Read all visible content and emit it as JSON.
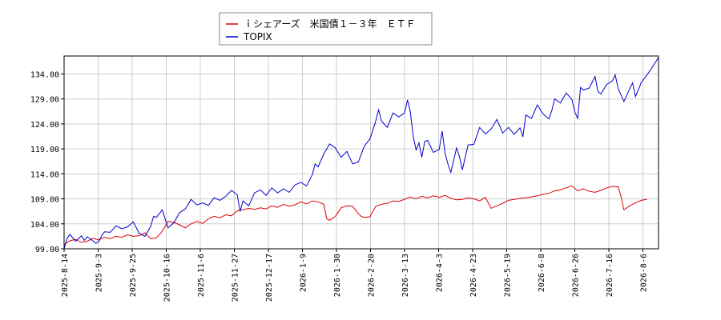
{
  "chart_data": {
    "type": "line",
    "grid": true,
    "legend_placement": "top-center",
    "ylim": [
      99.0,
      137.6
    ],
    "y_ticks": [
      "99.00",
      "104.00",
      "109.00",
      "114.00",
      "119.00",
      "124.00",
      "129.00",
      "134.00"
    ],
    "x_ticks": [
      "2025-8-14",
      "2025-9-3",
      "2025-9-25",
      "2025-10-16",
      "2025-11-6",
      "2025-11-27",
      "2025-12-17",
      "2026-1-9",
      "2026-1-30",
      "2026-2-20",
      "2026-3-13",
      "2026-4-3",
      "2026-4-23",
      "2026-5-19",
      "2026-6-8",
      "2026-6-26",
      "2026-7-16",
      "2026-8-6"
    ],
    "series": [
      {
        "name": "ｉシェアーズ　米国債１－３年　ＥＴＦ",
        "color": "#dd0000",
        "points": [
          [
            0,
            99.8
          ],
          [
            2,
            100.6
          ],
          [
            4,
            100.9
          ],
          [
            6,
            100.3
          ],
          [
            8,
            100.5
          ],
          [
            10,
            101.1
          ],
          [
            12,
            100.8
          ],
          [
            14,
            101.3
          ],
          [
            16,
            101.0
          ],
          [
            18,
            101.5
          ],
          [
            20,
            101.3
          ],
          [
            22,
            101.8
          ],
          [
            24,
            101.5
          ],
          [
            26,
            101.6
          ],
          [
            28,
            102.2
          ],
          [
            30,
            101.0
          ],
          [
            32,
            101.2
          ],
          [
            34,
            102.5
          ],
          [
            36,
            104.5
          ],
          [
            38,
            104.3
          ],
          [
            40,
            103.8
          ],
          [
            42,
            103.2
          ],
          [
            44,
            104.0
          ],
          [
            46,
            104.5
          ],
          [
            48,
            104.1
          ],
          [
            50,
            105.0
          ],
          [
            52,
            105.5
          ],
          [
            54,
            105.2
          ],
          [
            56,
            105.8
          ],
          [
            58,
            105.6
          ],
          [
            60,
            106.6
          ],
          [
            62,
            106.8
          ],
          [
            64,
            107.1
          ],
          [
            66,
            106.9
          ],
          [
            68,
            107.2
          ],
          [
            70,
            107.0
          ],
          [
            72,
            107.6
          ],
          [
            74,
            107.3
          ],
          [
            76,
            107.9
          ],
          [
            78,
            107.5
          ],
          [
            80,
            107.8
          ],
          [
            82,
            108.4
          ],
          [
            84,
            108.0
          ],
          [
            86,
            108.6
          ],
          [
            88,
            108.4
          ],
          [
            90,
            107.9
          ],
          [
            91,
            105.0
          ],
          [
            92,
            104.7
          ],
          [
            94,
            105.5
          ],
          [
            96,
            107.2
          ],
          [
            98,
            107.6
          ],
          [
            100,
            107.5
          ],
          [
            102,
            106.0
          ],
          [
            103,
            105.5
          ],
          [
            104,
            105.3
          ],
          [
            106,
            105.4
          ],
          [
            108,
            107.5
          ],
          [
            110,
            107.9
          ],
          [
            112,
            108.1
          ],
          [
            114,
            108.6
          ],
          [
            116,
            108.5
          ],
          [
            118,
            108.9
          ],
          [
            120,
            109.4
          ],
          [
            122,
            109.0
          ],
          [
            124,
            109.5
          ],
          [
            126,
            109.2
          ],
          [
            128,
            109.6
          ],
          [
            130,
            109.3
          ],
          [
            132,
            109.7
          ],
          [
            134,
            109.1
          ],
          [
            136,
            108.8
          ],
          [
            138,
            108.9
          ],
          [
            140,
            109.2
          ],
          [
            142,
            109.0
          ],
          [
            144,
            108.6
          ],
          [
            146,
            109.3
          ],
          [
            148,
            107.1
          ],
          [
            150,
            107.6
          ],
          [
            152,
            108.1
          ],
          [
            154,
            108.7
          ],
          [
            156,
            108.9
          ],
          [
            158,
            109.1
          ],
          [
            160,
            109.2
          ],
          [
            162,
            109.4
          ],
          [
            164,
            109.6
          ],
          [
            166,
            109.9
          ],
          [
            168,
            110.1
          ],
          [
            170,
            110.6
          ],
          [
            172,
            110.8
          ],
          [
            174,
            111.2
          ],
          [
            176,
            111.6
          ],
          [
            178,
            110.6
          ],
          [
            180,
            111.0
          ],
          [
            182,
            110.5
          ],
          [
            184,
            110.3
          ],
          [
            186,
            110.7
          ],
          [
            188,
            111.2
          ],
          [
            190,
            111.5
          ],
          [
            192,
            111.4
          ],
          [
            193,
            109.5
          ],
          [
            194,
            106.8
          ],
          [
            196,
            107.6
          ],
          [
            198,
            108.2
          ],
          [
            200,
            108.7
          ],
          [
            202,
            108.9
          ]
        ]
      },
      {
        "name": "TOPIX",
        "color": "#0000cc",
        "points": [
          [
            0,
            99.0
          ],
          [
            1,
            101.0
          ],
          [
            2,
            101.9
          ],
          [
            4,
            100.5
          ],
          [
            6,
            101.6
          ],
          [
            7,
            100.7
          ],
          [
            8,
            101.4
          ],
          [
            10,
            100.6
          ],
          [
            11,
            100.1
          ],
          [
            12,
            100.4
          ],
          [
            13,
            101.6
          ],
          [
            14,
            102.4
          ],
          [
            16,
            102.3
          ],
          [
            18,
            103.6
          ],
          [
            20,
            103.0
          ],
          [
            22,
            103.4
          ],
          [
            24,
            104.4
          ],
          [
            26,
            102.1
          ],
          [
            28,
            101.5
          ],
          [
            30,
            103.5
          ],
          [
            31,
            105.5
          ],
          [
            32,
            105.3
          ],
          [
            34,
            106.8
          ],
          [
            36,
            103.2
          ],
          [
            38,
            104.2
          ],
          [
            40,
            106.2
          ],
          [
            42,
            107.0
          ],
          [
            44,
            108.9
          ],
          [
            46,
            107.8
          ],
          [
            48,
            108.2
          ],
          [
            50,
            107.7
          ],
          [
            52,
            109.2
          ],
          [
            54,
            108.7
          ],
          [
            56,
            109.5
          ],
          [
            58,
            110.7
          ],
          [
            60,
            109.8
          ],
          [
            61,
            106.5
          ],
          [
            62,
            108.6
          ],
          [
            64,
            107.6
          ],
          [
            66,
            110.2
          ],
          [
            68,
            110.8
          ],
          [
            70,
            109.7
          ],
          [
            72,
            111.2
          ],
          [
            74,
            110.2
          ],
          [
            76,
            111.0
          ],
          [
            78,
            110.3
          ],
          [
            80,
            111.8
          ],
          [
            82,
            112.3
          ],
          [
            84,
            111.6
          ],
          [
            86,
            113.8
          ],
          [
            87,
            116.0
          ],
          [
            88,
            115.4
          ],
          [
            90,
            118.0
          ],
          [
            92,
            120.0
          ],
          [
            94,
            119.2
          ],
          [
            96,
            117.3
          ],
          [
            98,
            118.5
          ],
          [
            100,
            116.0
          ],
          [
            102,
            116.4
          ],
          [
            104,
            119.5
          ],
          [
            106,
            121.0
          ],
          [
            108,
            124.6
          ],
          [
            109,
            126.8
          ],
          [
            110,
            124.6
          ],
          [
            112,
            123.3
          ],
          [
            114,
            126.2
          ],
          [
            116,
            125.4
          ],
          [
            118,
            126.2
          ],
          [
            119,
            128.8
          ],
          [
            120,
            126.4
          ],
          [
            121,
            121.5
          ],
          [
            122,
            118.8
          ],
          [
            123,
            120.2
          ],
          [
            124,
            117.3
          ],
          [
            125,
            120.5
          ],
          [
            126,
            120.7
          ],
          [
            128,
            118.3
          ],
          [
            130,
            118.9
          ],
          [
            131,
            122.6
          ],
          [
            132,
            118.2
          ],
          [
            133,
            116.0
          ],
          [
            134,
            114.3
          ],
          [
            136,
            119.2
          ],
          [
            137,
            117.5
          ],
          [
            138,
            114.8
          ],
          [
            140,
            119.8
          ],
          [
            142,
            119.9
          ],
          [
            144,
            123.3
          ],
          [
            146,
            122.0
          ],
          [
            148,
            123.0
          ],
          [
            150,
            124.9
          ],
          [
            152,
            122.2
          ],
          [
            154,
            123.3
          ],
          [
            156,
            121.9
          ],
          [
            158,
            123.2
          ],
          [
            159,
            121.4
          ],
          [
            160,
            125.8
          ],
          [
            162,
            125.1
          ],
          [
            164,
            127.8
          ],
          [
            166,
            126.0
          ],
          [
            168,
            125.0
          ],
          [
            169,
            126.6
          ],
          [
            170,
            129.0
          ],
          [
            172,
            128.2
          ],
          [
            174,
            130.2
          ],
          [
            176,
            128.9
          ],
          [
            177,
            126.4
          ],
          [
            178,
            125.1
          ],
          [
            179,
            131.3
          ],
          [
            180,
            130.8
          ],
          [
            182,
            131.2
          ],
          [
            184,
            133.5
          ],
          [
            185,
            130.5
          ],
          [
            186,
            130.0
          ],
          [
            188,
            131.9
          ],
          [
            190,
            132.6
          ],
          [
            191,
            133.8
          ],
          [
            192,
            131.1
          ],
          [
            193,
            129.8
          ],
          [
            194,
            128.5
          ],
          [
            196,
            131.0
          ],
          [
            197,
            132.2
          ],
          [
            198,
            129.5
          ],
          [
            199,
            130.8
          ],
          [
            200,
            132.3
          ],
          [
            202,
            133.8
          ],
          [
            204,
            135.5
          ],
          [
            206,
            137.3
          ]
        ]
      }
    ]
  }
}
